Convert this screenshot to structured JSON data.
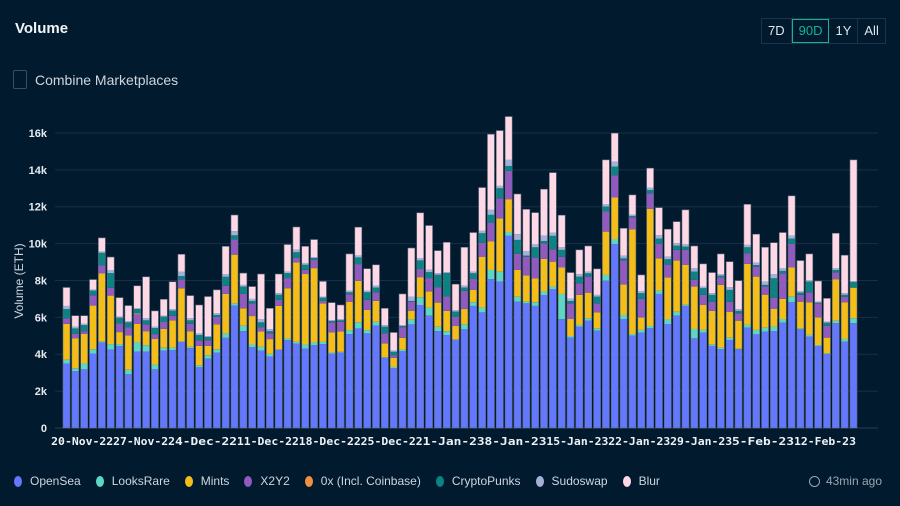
{
  "header": {
    "title": "Volume",
    "ranges": [
      "7D",
      "90D",
      "1Y",
      "All"
    ],
    "active_range": "90D"
  },
  "combine": {
    "label": "Combine Marketplaces",
    "checked": false
  },
  "updated": {
    "text": "43min ago",
    "icon": "clock-icon"
  },
  "chart_data": {
    "type": "bar",
    "stacked": true,
    "ylabel": "Volume (ETH)",
    "ylim": [
      0,
      16000
    ],
    "yticks": [
      "0",
      "2k",
      "4k",
      "6k",
      "8k",
      "10k",
      "12k",
      "14k",
      "16k"
    ],
    "grid": true,
    "legend_position": "bottom",
    "xtick_labels": [
      "20-Nov-22",
      "27-Nov-22",
      "4-Dec-22",
      "11-Dec-22",
      "18-Dec-22",
      "25-Dec-22",
      "1-Jan-23",
      "8-Jan-23",
      "15-Jan-23",
      "22-Jan-23",
      "29-Jan-23",
      "5-Feb-23",
      "12-Feb-23"
    ],
    "first_date": "18-Nov-22",
    "series": [
      {
        "name": "OpenSea",
        "color": "#6477ff",
        "values": [
          3.5,
          3.09,
          3.18,
          4.04,
          4.64,
          4.25,
          4.44,
          2.91,
          4.15,
          4.15,
          3.18,
          4.2,
          4.22,
          4.67,
          4.33,
          3.29,
          3.76,
          4.09,
          4.89,
          6.64,
          5.25,
          4.38,
          4.2,
          3.87,
          4.25,
          4.76,
          4.58,
          4.31,
          4.49,
          4.55,
          4.04,
          4.09,
          5.09,
          5.4,
          5.13,
          5.55,
          3.8,
          3.25,
          4.16,
          5.62,
          6.67,
          6.09,
          5.25,
          5.04,
          4.8,
          5.35,
          6.62,
          6.27,
          8.07,
          7.94,
          10.42,
          6.85,
          6.76,
          6.62,
          7.2,
          7.52,
          5.9,
          4.9,
          5.5,
          5.82,
          5.28,
          7.99,
          9.98,
          5.91,
          5.01,
          5.17,
          5.41,
          7.27,
          5.64,
          6.09,
          6.62,
          4.86,
          5.17,
          4.45,
          4.27,
          4.77,
          4.27,
          5.44,
          5.08,
          5.23,
          5.26,
          5.71,
          6.82,
          5.35,
          4.95,
          4.45,
          4.01,
          5.68,
          4.68,
          5.68
        ]
      },
      {
        "name": "LooksRare",
        "color": "#5dd6c3",
        "values": [
          0.2,
          0.15,
          0.32,
          0.23,
          0.04,
          0.3,
          0.11,
          0.25,
          0.49,
          0.34,
          0.26,
          0.15,
          0.14,
          0.02,
          0.07,
          0.11,
          0.19,
          0.18,
          0.24,
          0.12,
          0.3,
          0.15,
          0.2,
          0.15,
          0,
          0.09,
          0.09,
          0.22,
          0.15,
          0.12,
          0.05,
          0.04,
          0.22,
          0.33,
          0.18,
          0.21,
          0.04,
          0.06,
          0.09,
          0.27,
          0.42,
          0.44,
          0.24,
          0.21,
          0,
          0.27,
          0.2,
          0.26,
          0.5,
          0.54,
          0.21,
          0.27,
          0.09,
          0.2,
          0.2,
          0.15,
          1.37,
          0.09,
          0.09,
          0.13,
          0.13,
          0.31,
          0.27,
          0.22,
          0.09,
          0.15,
          0.12,
          0.18,
          0.27,
          0.22,
          0.07,
          0.51,
          0.15,
          0.09,
          0.09,
          0.13,
          0.03,
          0.15,
          0.24,
          0.21,
          0.24,
          0.2,
          0.3,
          0.06,
          0.1,
          0.05,
          0.04,
          0.14,
          0.15,
          0.27
        ]
      },
      {
        "name": "Mints",
        "color": "#f5bd17",
        "values": [
          1.95,
          1.63,
          1.6,
          2.37,
          3.7,
          2.63,
          0.65,
          1.86,
          1.0,
          0.76,
          1.4,
          1.03,
          1.48,
          2.88,
          0.85,
          1.05,
          0.5,
          1.35,
          2.14,
          2.64,
          0.94,
          1.54,
          0.84,
          0.8,
          2.37,
          2.73,
          4.31,
          3.82,
          4.03,
          2.09,
          1.09,
          1.11,
          1.54,
          2.25,
          1.09,
          1.13,
          0.74,
          0.49,
          0.64,
          0.47,
          1.09,
          0.87,
          1.31,
          1.1,
          0.73,
          0.83,
          0.67,
          2.76,
          1.56,
          2.89,
          1.78,
          1.45,
          1.43,
          1.3,
          1.77,
          1.35,
          1.45,
          0.92,
          1.63,
          1.39,
          0.86,
          2.35,
          2.25,
          1.65,
          5.68,
          0.67,
          6.35,
          1.75,
          2.26,
          2.77,
          2.15,
          2.3,
          1.35,
          1.81,
          3.4,
          1.39,
          1.52,
          3.31,
          2.89,
          1.79,
          0.97,
          1.09,
          1.6,
          1.44,
          1.77,
          1.5,
          0.85,
          2.25,
          1.99,
          1.66
        ]
      },
      {
        "name": "X2Y2",
        "color": "#9259bf",
        "values": [
          0.3,
          0.23,
          0.15,
          0.56,
          0.45,
          0.42,
          0.47,
          0.43,
          0.52,
          0.37,
          0.25,
          0.37,
          0.25,
          0.49,
          0.4,
          0.31,
          0.31,
          0.4,
          0.44,
          0.82,
          0.78,
          0.69,
          0.23,
          0.31,
          0.33,
          0.55,
          0.24,
          0.23,
          0.46,
          0.13,
          0.55,
          0.52,
          0.4,
          0.91,
          0.55,
          0.47,
          0.55,
          0.15,
          0.58,
          0.49,
          0.44,
          0.73,
          0.82,
          0.78,
          0.49,
          0.99,
          0.59,
          0.76,
          1.01,
          1.09,
          1.53,
          0.87,
          1.01,
          1.12,
          0.85,
          0.67,
          0.57,
          0.85,
          0.63,
          0.87,
          0.49,
          1.09,
          1.21,
          1.3,
          0.65,
          1.01,
          0.85,
          0.78,
          0.69,
          0.58,
          0.82,
          0.36,
          0.55,
          0.49,
          0.4,
          0.55,
          0.4,
          0.58,
          0.54,
          0.44,
          0.6,
          1.39,
          1.26,
          0.37,
          0.54,
          0.76,
          0.65,
          0.36,
          0.3,
          0
        ]
      },
      {
        "name": "0x (Incl. Coinbase)",
        "color": "#f3903f",
        "values": [
          0,
          0,
          0,
          0,
          0,
          0,
          0,
          0,
          0.05,
          0,
          0,
          0,
          0,
          0,
          0,
          0,
          0,
          0,
          0,
          0,
          0,
          0,
          0,
          0,
          0,
          0,
          0,
          0,
          0,
          0,
          0,
          0,
          0,
          0,
          0,
          0,
          0,
          0,
          0,
          0,
          0,
          0,
          0,
          0,
          0,
          0,
          0,
          0,
          0,
          0,
          0,
          0,
          0,
          0,
          0,
          0,
          0,
          0,
          0,
          0,
          0,
          0,
          0,
          0,
          0,
          0,
          0,
          0,
          0,
          0,
          0,
          0,
          0,
          0,
          0,
          0,
          0,
          0,
          0,
          0,
          0,
          0,
          0,
          0,
          0,
          0,
          0,
          0,
          0,
          0
        ]
      },
      {
        "name": "CryptoPunks",
        "color": "#0a8382",
        "values": [
          0.5,
          0.3,
          0.33,
          0.25,
          0.67,
          0.8,
          0.31,
          0.28,
          0.24,
          0.22,
          0.33,
          0.29,
          0.27,
          0.18,
          0.19,
          0.28,
          0.17,
          0.11,
          0.49,
          0.23,
          0.4,
          0.13,
          0.26,
          0.12,
          0.27,
          0.27,
          0.31,
          0.27,
          0.09,
          0.18,
          0.07,
          0.08,
          0.11,
          0.36,
          0.41,
          0.26,
          0.36,
          0.18,
          0.06,
          0.04,
          0.47,
          0.32,
          0.69,
          1.27,
          0.29,
          0.18,
          0.31,
          0.51,
          0.42,
          0.54,
          0.27,
          0.76,
          0.06,
          0.56,
          0.12,
          0.73,
          0.37,
          0.13,
          0.36,
          0.18,
          0.36,
          0.27,
          0.47,
          0.12,
          0.07,
          0.31,
          0.18,
          0.29,
          0.29,
          0.23,
          0.18,
          0.45,
          0.36,
          0.38,
          0.1,
          0.65,
          0.13,
          0.32,
          0.09,
          0.09,
          1.05,
          0.13,
          0.29,
          0.12,
          0.58,
          0.04,
          0.16,
          0.14,
          0.1,
          0.33
        ]
      },
      {
        "name": "Sudoswap",
        "color": "#a3b1d9",
        "values": [
          0.17,
          0.1,
          0.07,
          0.05,
          0.06,
          0.15,
          0.07,
          0.07,
          0.05,
          0.11,
          0.08,
          0.06,
          0.09,
          0.23,
          0.11,
          0.09,
          0.05,
          0.09,
          0.15,
          0.22,
          0.09,
          0.11,
          0.18,
          0.11,
          0.09,
          0.09,
          0.14,
          0.1,
          0.05,
          0.06,
          0.05,
          0.07,
          0.08,
          0.11,
          0.08,
          0.11,
          0.09,
          0.07,
          0.05,
          0.24,
          0.13,
          0.13,
          0.09,
          0.05,
          0.07,
          0.11,
          0.09,
          0.13,
          0.27,
          0.13,
          0.33,
          0.31,
          0.25,
          0.16,
          0.29,
          0.18,
          0.14,
          0.13,
          0.13,
          0.09,
          0.1,
          0.12,
          0.27,
          0.15,
          0.06,
          0.12,
          0.13,
          0.18,
          0.14,
          0.13,
          0.12,
          0.18,
          0.09,
          0.09,
          0.09,
          0.14,
          0.09,
          0.13,
          0.13,
          0.18,
          0.23,
          0.14,
          0.16,
          0.09,
          0.07,
          0.05,
          0.06,
          0.09,
          0.09,
          0
        ]
      },
      {
        "name": "Blur",
        "color": "#ffd8e6",
        "values": [
          1.0,
          0.59,
          0.44,
          0.55,
          0.75,
          0.72,
          1.02,
          0.84,
          1.21,
          2.25,
          0.85,
          0.88,
          1.48,
          0.95,
          1.23,
          1.54,
          2.15,
          1.27,
          1.5,
          0.88,
          0.64,
          0.67,
          2.44,
          1.13,
          1.04,
          1.46,
          1.23,
          0.9,
          0.95,
          0.82,
          0.95,
          0.76,
          2.0,
          1.53,
          1.2,
          1.12,
          0.91,
          0.98,
          1.69,
          2.63,
          2.45,
          2.4,
          1.22,
          1.62,
          1.42,
          2.07,
          2.12,
          2.35,
          4.1,
          3.0,
          2.35,
          2.18,
          2.26,
          1.72,
          2.52,
          3.25,
          1.74,
          1.41,
          1.32,
          1.39,
          1.41,
          2.41,
          1.54,
          1.48,
          1.08,
          0.87,
          1.05,
          1.5,
          1.49,
          1.17,
          1.87,
          1.21,
          1.23,
          1.12,
          1.09,
          1.39,
          1.55,
          2.2,
          1.54,
          1.86,
          1.7,
          1.94,
          2.16,
          1.65,
          1.43,
          1.12,
          1.26,
          1.9,
          2.06,
          6.6
        ]
      }
    ]
  }
}
